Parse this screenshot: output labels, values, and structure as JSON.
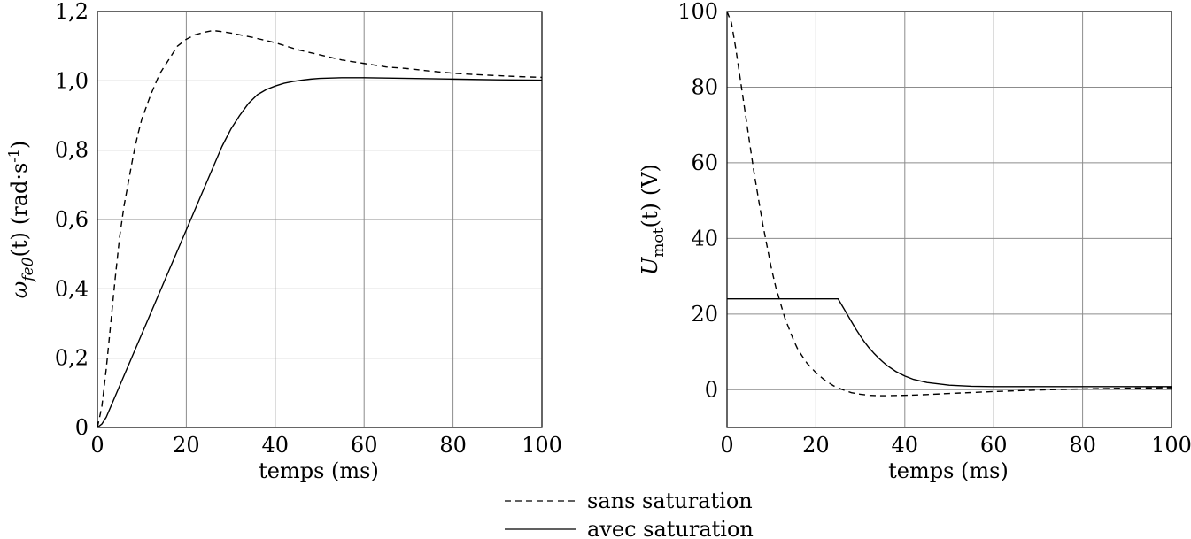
{
  "legend": {
    "dashed_label": "sans saturation",
    "solid_label": "avec saturation"
  },
  "chart_data": [
    {
      "type": "line",
      "xlabel": "temps (ms)",
      "ylabel": {
        "symbol": "ω",
        "sub": "fe0",
        "arg": "(t)",
        "unit_pre": "(rad·s",
        "unit_sup": "-1",
        "unit_post": ")"
      },
      "xlim": [
        0,
        100
      ],
      "ylim": [
        0,
        1.2
      ],
      "xticks": [
        0,
        20,
        40,
        60,
        80,
        100
      ],
      "xtick_labels": [
        "0",
        "20",
        "40",
        "60",
        "80",
        "100"
      ],
      "yticks": [
        0,
        0.2,
        0.4,
        0.6,
        0.8,
        1.0,
        1.2
      ],
      "ytick_labels": [
        "0",
        "0,2",
        "0,4",
        "0,6",
        "0,8",
        "1,0",
        "1,2"
      ],
      "grid": true,
      "series": [
        {
          "name": "sans saturation",
          "style": "dashed",
          "x": [
            0,
            1,
            2,
            3,
            4,
            5,
            6,
            7,
            8,
            9,
            10,
            12,
            14,
            16,
            18,
            20,
            22,
            24,
            26,
            28,
            30,
            35,
            40,
            45,
            50,
            55,
            60,
            65,
            70,
            75,
            80,
            85,
            90,
            95,
            100
          ],
          "y": [
            0,
            0.06,
            0.17,
            0.3,
            0.43,
            0.55,
            0.64,
            0.71,
            0.78,
            0.84,
            0.89,
            0.96,
            1.02,
            1.06,
            1.1,
            1.12,
            1.133,
            1.14,
            1.145,
            1.142,
            1.138,
            1.125,
            1.11,
            1.09,
            1.075,
            1.06,
            1.05,
            1.04,
            1.035,
            1.028,
            1.022,
            1.018,
            1.015,
            1.012,
            1.01
          ]
        },
        {
          "name": "avec saturation",
          "style": "solid",
          "x": [
            0,
            1,
            2,
            3,
            4,
            6,
            8,
            10,
            12,
            14,
            16,
            18,
            20,
            22,
            24,
            26,
            28,
            30,
            32,
            34,
            36,
            38,
            40,
            42,
            44,
            46,
            48,
            50,
            55,
            60,
            65,
            70,
            80,
            90,
            100
          ],
          "y": [
            0,
            0.01,
            0.03,
            0.06,
            0.09,
            0.15,
            0.21,
            0.27,
            0.33,
            0.39,
            0.45,
            0.51,
            0.57,
            0.63,
            0.69,
            0.75,
            0.81,
            0.86,
            0.9,
            0.935,
            0.96,
            0.975,
            0.985,
            0.993,
            0.998,
            1.002,
            1.005,
            1.007,
            1.009,
            1.009,
            1.008,
            1.007,
            1.005,
            1.003,
            1.002
          ]
        }
      ]
    },
    {
      "type": "line",
      "xlabel": "temps (ms)",
      "ylabel": {
        "symbol": "U",
        "sub": "mot",
        "arg": "(t)",
        "unit": "(V)"
      },
      "xlim": [
        0,
        100
      ],
      "ylim": [
        -10,
        100
      ],
      "xticks": [
        0,
        20,
        40,
        60,
        80,
        100
      ],
      "xtick_labels": [
        "0",
        "20",
        "40",
        "60",
        "80",
        "100"
      ],
      "yticks": [
        0,
        20,
        40,
        60,
        80,
        100
      ],
      "ytick_labels": [
        "0",
        "20",
        "40",
        "60",
        "80",
        "100"
      ],
      "grid": true,
      "series": [
        {
          "name": "sans saturation",
          "style": "dashed",
          "x": [
            0,
            1,
            2,
            3,
            4,
            5,
            6,
            7,
            8,
            9,
            10,
            11,
            12,
            13,
            14,
            15,
            16,
            18,
            20,
            22,
            24,
            26,
            28,
            30,
            32,
            35,
            40,
            45,
            50,
            60,
            70,
            80,
            90,
            100
          ],
          "y": [
            100,
            97,
            90,
            82,
            74,
            66,
            58,
            51,
            44,
            38,
            32,
            27,
            23,
            19,
            16,
            13,
            10.5,
            7,
            4.5,
            2.5,
            1,
            0,
            -0.8,
            -1.2,
            -1.5,
            -1.6,
            -1.5,
            -1.3,
            -1.0,
            -0.5,
            -0.1,
            0.2,
            0.4,
            0.5
          ]
        },
        {
          "name": "avec saturation",
          "style": "solid",
          "x": [
            0,
            24,
            25,
            26,
            27,
            28,
            29,
            30,
            31,
            32,
            33,
            34,
            35,
            36,
            38,
            40,
            42,
            45,
            50,
            55,
            60,
            70,
            80,
            90,
            100
          ],
          "y": [
            24,
            24,
            24,
            22,
            20,
            18,
            16,
            14.2,
            12.5,
            11,
            9.7,
            8.5,
            7.4,
            6.4,
            4.8,
            3.6,
            2.7,
            1.9,
            1.2,
            0.9,
            0.8,
            0.8,
            0.8,
            0.8,
            0.8
          ]
        }
      ]
    }
  ]
}
